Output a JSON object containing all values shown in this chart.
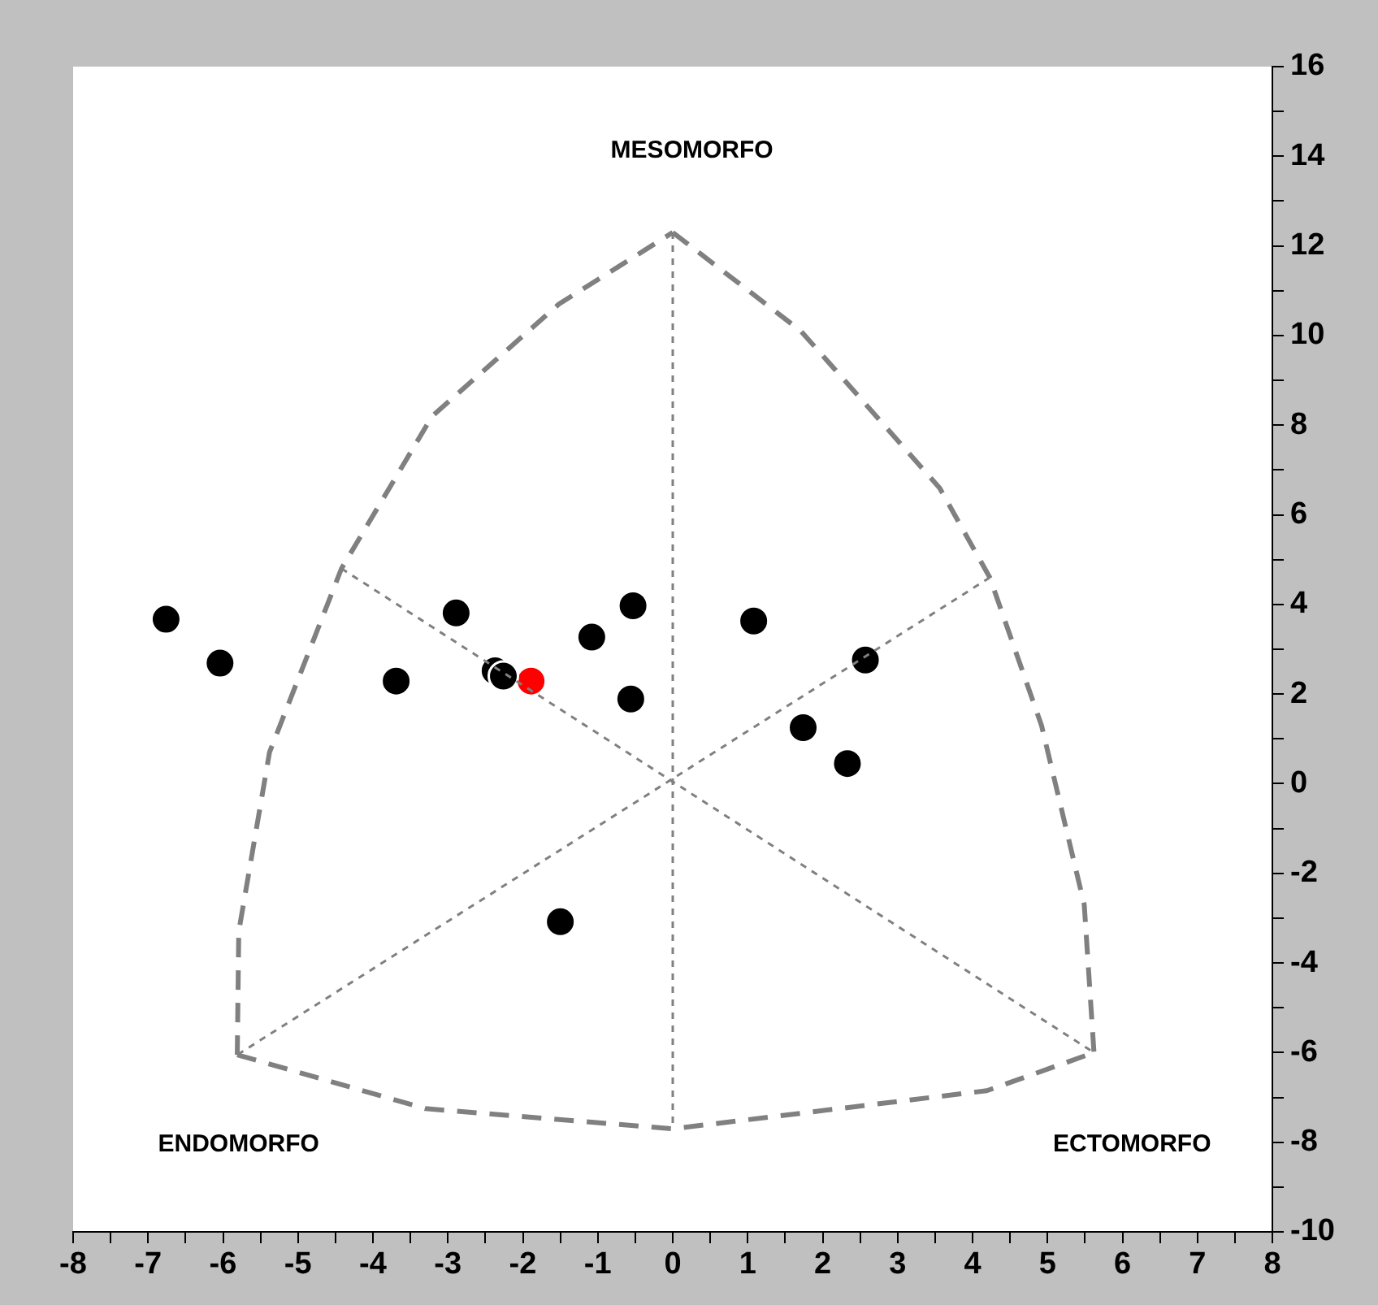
{
  "chart_data": {
    "type": "scatter",
    "xlim": [
      -8,
      8
    ],
    "ylim": [
      -10,
      16
    ],
    "xticks": [
      -8,
      {
        "value": -7.5,
        "label": null
      },
      -7,
      {
        "value": -6.5,
        "label": null
      },
      -6,
      {
        "value": -5.5,
        "label": null
      },
      -5,
      {
        "value": -4.5,
        "label": null
      },
      -4,
      {
        "value": -3.5,
        "label": null
      },
      -3,
      {
        "value": -2.5,
        "label": null
      },
      -2,
      {
        "value": -1.5,
        "label": null
      },
      -1,
      {
        "value": -0.5,
        "label": null
      },
      0,
      {
        "value": 0.5,
        "label": null
      },
      1,
      {
        "value": 1.5,
        "label": null
      },
      2,
      {
        "value": 2.5,
        "label": null
      },
      3,
      {
        "value": 3.5,
        "label": null
      },
      4,
      {
        "value": 4.5,
        "label": null
      },
      5,
      {
        "value": 5.5,
        "label": null
      },
      6,
      {
        "value": 6.5,
        "label": null
      },
      7,
      {
        "value": 7.5,
        "label": null
      },
      8
    ],
    "yticks": [
      -10,
      {
        "value": -9,
        "label": null
      },
      -8,
      {
        "value": -7,
        "label": null
      },
      -6,
      {
        "value": -5,
        "label": null
      },
      -4,
      {
        "value": -3,
        "label": null
      },
      -2,
      {
        "value": -1,
        "label": null
      },
      0,
      {
        "value": 1,
        "label": null
      },
      2,
      {
        "value": 3,
        "label": null
      },
      4,
      {
        "value": 5,
        "label": null
      },
      6,
      {
        "value": 7,
        "label": null
      },
      8,
      {
        "value": 9,
        "label": null
      },
      10,
      {
        "value": 11,
        "label": null
      },
      12,
      {
        "value": 13,
        "label": null
      },
      14,
      {
        "value": 15,
        "label": null
      },
      16
    ],
    "legend": false,
    "marker": "circle",
    "annotations": [
      "MESOMORFO",
      "ENDOMORFO",
      "ECTOMORFO"
    ],
    "series": [
      {
        "type": "line",
        "color": "#808080",
        "line_style": "dashed",
        "marker": "none",
        "x": [
          -5.81,
          -5.79,
          -5.38,
          -4.42,
          -3.21,
          -1.52,
          0
        ],
        "values": [
          -6.05,
          -3.3,
          0.7,
          4.8,
          8.2,
          10.7,
          12.3
        ]
      },
      {
        "type": "line",
        "color": "#808080",
        "line_style": "dashed",
        "marker": "none",
        "x": [
          0,
          1.71,
          3.56,
          4.23,
          4.92,
          5.49,
          5.62
        ],
        "values": [
          12.3,
          10.1,
          6.6,
          4.6,
          1.3,
          -2.7,
          -6.0
        ]
      },
      {
        "type": "line",
        "color": "#808080",
        "line_style": "dashed",
        "marker": "none",
        "x": [
          -5.81,
          -3.3,
          0,
          4.19,
          5.62
        ],
        "values": [
          -6.05,
          -7.25,
          -7.7,
          -6.85,
          -6.0
        ]
      },
      {
        "type": "line",
        "color": "#808080",
        "line_style": "dotted",
        "marker": "none",
        "x": [
          0,
          0,
          0
        ],
        "values": [
          12.3,
          2.3,
          -7.7
        ]
      },
      {
        "type": "line",
        "color": "#808080",
        "line_style": "dotted",
        "marker": "none",
        "x": [
          -4.42,
          5.62
        ],
        "values": [
          4.8,
          -6.0
        ]
      },
      {
        "type": "line",
        "color": "#808080",
        "line_style": "dotted",
        "marker": "none",
        "x": [
          4.23,
          -5.81
        ],
        "values": [
          4.6,
          -6.05
        ]
      },
      {
        "color": "#000000",
        "x": [
          -6.76,
          -6.04,
          -3.69,
          -2.89,
          -2.37,
          -2.26,
          -1.08,
          -0.53,
          -0.56,
          -1.5,
          1.08,
          2.57,
          1.74,
          2.33
        ],
        "values": [
          3.67,
          2.69,
          2.29,
          3.81,
          2.52,
          2.4,
          3.27,
          3.97,
          1.89,
          -3.08,
          3.63,
          2.76,
          1.25,
          0.45
        ]
      },
      {
        "color": "#ff0000",
        "x": [
          -1.89
        ],
        "values": [
          2.29
        ]
      }
    ]
  }
}
